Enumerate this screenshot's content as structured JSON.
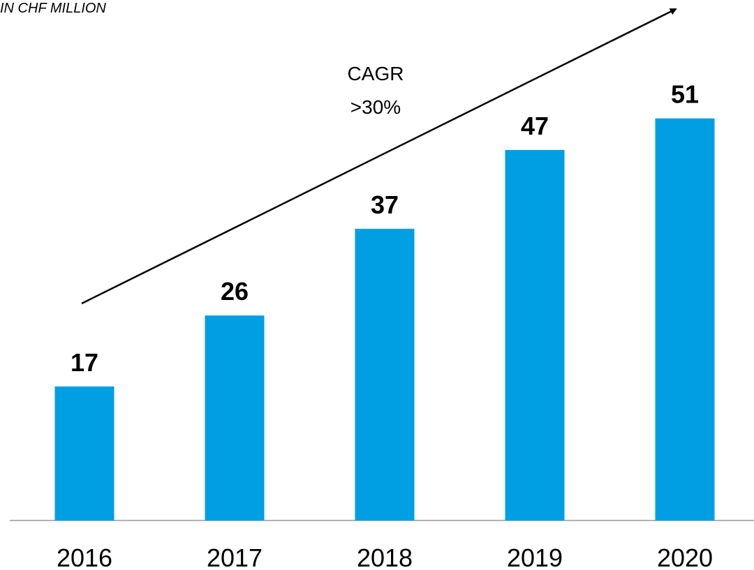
{
  "chart_data": {
    "type": "bar",
    "subtitle": "IN CHF MILLION",
    "annotation": [
      "CAGR",
      ">30%"
    ],
    "categories": [
      "2016",
      "2017",
      "2018",
      "2019",
      "2020"
    ],
    "values": [
      17,
      26,
      37,
      47,
      51
    ],
    "color": "#009fe3"
  }
}
